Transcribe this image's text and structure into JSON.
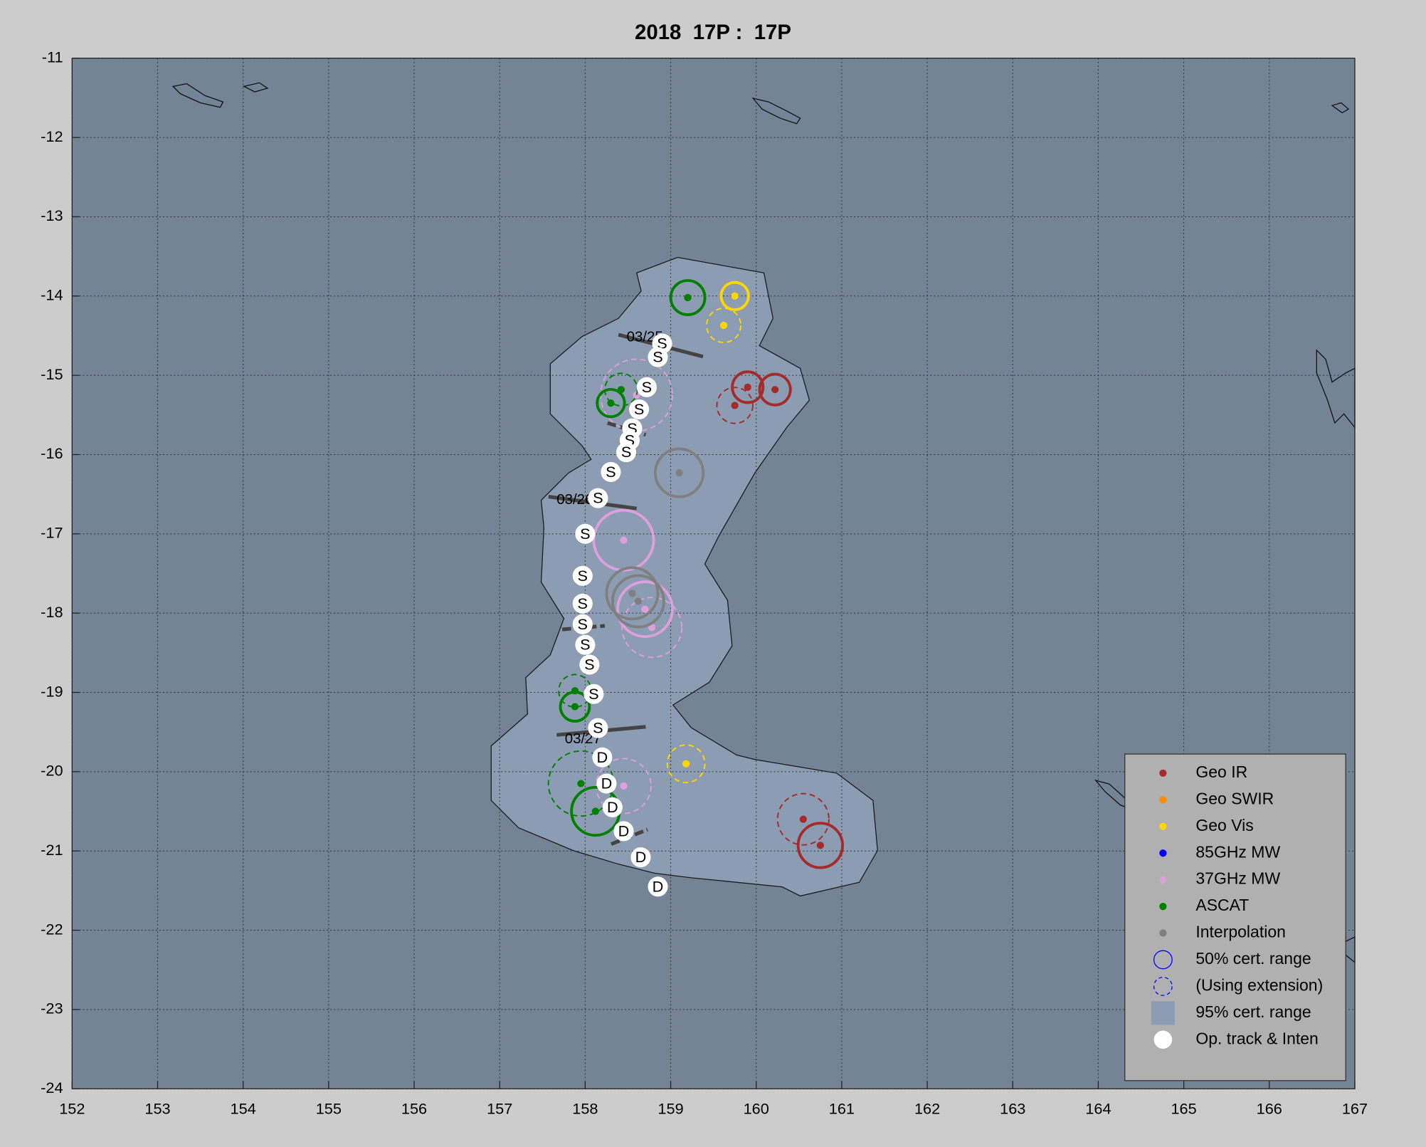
{
  "chart_data": {
    "type": "scatter",
    "title": "2018  17P :  17P",
    "xlim": [
      152,
      167
    ],
    "ylim": [
      -24,
      -11
    ],
    "xticks": [
      152,
      153,
      154,
      155,
      156,
      157,
      158,
      159,
      160,
      161,
      162,
      163,
      164,
      165,
      166,
      167
    ],
    "yticks": [
      -24,
      -23,
      -22,
      -21,
      -20,
      -19,
      -18,
      -17,
      -16,
      -15,
      -14,
      -13,
      -12,
      -11
    ],
    "grid": true,
    "legend": "lower right",
    "series": [
      {
        "name": "Geo IR",
        "color": "#a52a2a",
        "x": [
          159.9,
          160.22,
          159.75,
          160.55,
          160.75
        ],
        "y": [
          -15.15,
          -15.18,
          -15.38,
          -20.6,
          -20.93
        ],
        "radius": [
          0.18,
          0.18,
          0.21,
          0.3,
          0.26
        ],
        "extension": [
          false,
          false,
          true,
          true,
          false
        ]
      },
      {
        "name": "Geo SWIR",
        "color": "#ff8c00",
        "x": [],
        "y": [],
        "radius": [],
        "extension": []
      },
      {
        "name": "Geo Vis",
        "color": "#ffd700",
        "x": [
          159.75,
          159.62,
          159.18
        ],
        "y": [
          -14.0,
          -14.37,
          -19.9
        ],
        "radius": [
          0.16,
          0.2,
          0.22
        ],
        "extension": [
          false,
          true,
          true
        ]
      },
      {
        "name": "85GHz MW",
        "color": "#0000ff",
        "x": [],
        "y": [],
        "radius": [],
        "extension": []
      },
      {
        "name": "37GHz MW",
        "color": "#dda0dd",
        "x": [
          158.45,
          158.7,
          158.78,
          158.45,
          158.6
        ],
        "y": [
          -17.08,
          -17.95,
          -18.18,
          -20.18,
          -15.25
        ],
        "radius": [
          0.35,
          0.32,
          0.35,
          0.32,
          0.42
        ],
        "extension": [
          false,
          false,
          true,
          true,
          true
        ]
      },
      {
        "name": "ASCAT",
        "color": "#008000",
        "x": [
          159.2,
          158.42,
          158.3,
          157.88,
          157.88,
          157.95,
          158.12
        ],
        "y": [
          -14.02,
          -15.18,
          -15.35,
          -18.98,
          -19.18,
          -20.15,
          -20.5
        ],
        "radius": [
          0.2,
          0.19,
          0.16,
          0.19,
          0.17,
          0.38,
          0.28
        ],
        "extension": [
          false,
          true,
          false,
          true,
          false,
          true,
          false
        ]
      },
      {
        "name": "Interpolation",
        "color": "#808080",
        "x": [
          159.1,
          158.55,
          158.62
        ],
        "y": [
          -16.23,
          -17.75,
          -17.85
        ],
        "radius": [
          0.28,
          0.3,
          0.3
        ],
        "extension": [
          false,
          false,
          false
        ]
      }
    ],
    "legend_extra": [
      "50% cert. range",
      "(Using extension)",
      "95% cert. range",
      "Op. track & Inten"
    ],
    "track": {
      "x": [
        158.9,
        158.85,
        158.72,
        158.63,
        158.55,
        158.52,
        158.48,
        158.3,
        158.15,
        158.0,
        157.97,
        157.97,
        157.97,
        158.0,
        158.05,
        158.1,
        158.15,
        158.2,
        158.25,
        158.32,
        158.45,
        158.65,
        158.85
      ],
      "y": [
        -14.6,
        -14.77,
        -15.15,
        -15.43,
        -15.67,
        -15.82,
        -15.97,
        -16.22,
        -16.55,
        -17.0,
        -17.53,
        -17.88,
        -18.14,
        -18.4,
        -18.65,
        -19.02,
        -19.45,
        -19.82,
        -20.15,
        -20.45,
        -20.75,
        -21.08,
        -21.45
      ],
      "labels": [
        "S",
        "S",
        "S",
        "S",
        "S",
        "S",
        "S",
        "S",
        "S",
        "S",
        "S",
        "S",
        "S",
        "S",
        "S",
        "S",
        "S",
        "D",
        "D",
        "D",
        "D",
        "D",
        "D"
      ]
    },
    "annotations": [
      "03/25",
      "03/26",
      "03/27"
    ]
  }
}
